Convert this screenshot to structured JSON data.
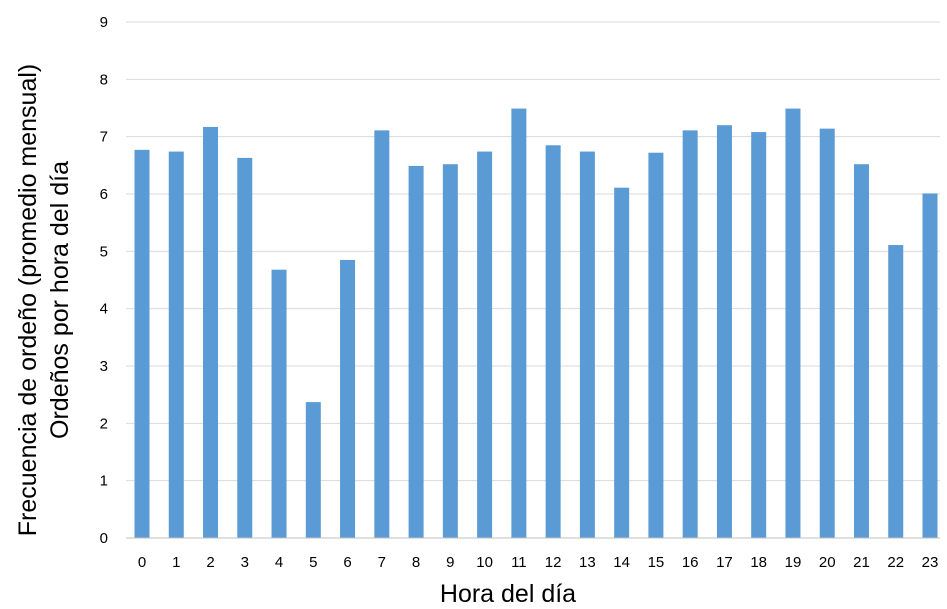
{
  "chart_data": {
    "type": "bar",
    "title": "",
    "xlabel": "Hora del día",
    "ylabel_line1": "Frecuencia de ordeño (promedio mensual)",
    "ylabel_line2": "Ordeños por hora del día",
    "categories": [
      "0",
      "1",
      "2",
      "3",
      "4",
      "5",
      "6",
      "7",
      "8",
      "9",
      "10",
      "11",
      "12",
      "13",
      "14",
      "15",
      "16",
      "17",
      "18",
      "19",
      "20",
      "21",
      "22",
      "23"
    ],
    "values": [
      6.77,
      6.74,
      7.17,
      6.63,
      4.68,
      2.37,
      4.85,
      7.11,
      6.49,
      6.52,
      6.74,
      7.49,
      6.85,
      6.74,
      6.11,
      6.72,
      7.11,
      7.2,
      7.08,
      7.49,
      7.14,
      6.52,
      5.11,
      6.01
    ],
    "ylim": [
      0,
      9
    ],
    "yticks": [
      "0",
      "1",
      "2",
      "3",
      "4",
      "5",
      "6",
      "7",
      "8",
      "9"
    ],
    "grid": true,
    "legend": "none",
    "bar_color": "#5b9bd5"
  }
}
